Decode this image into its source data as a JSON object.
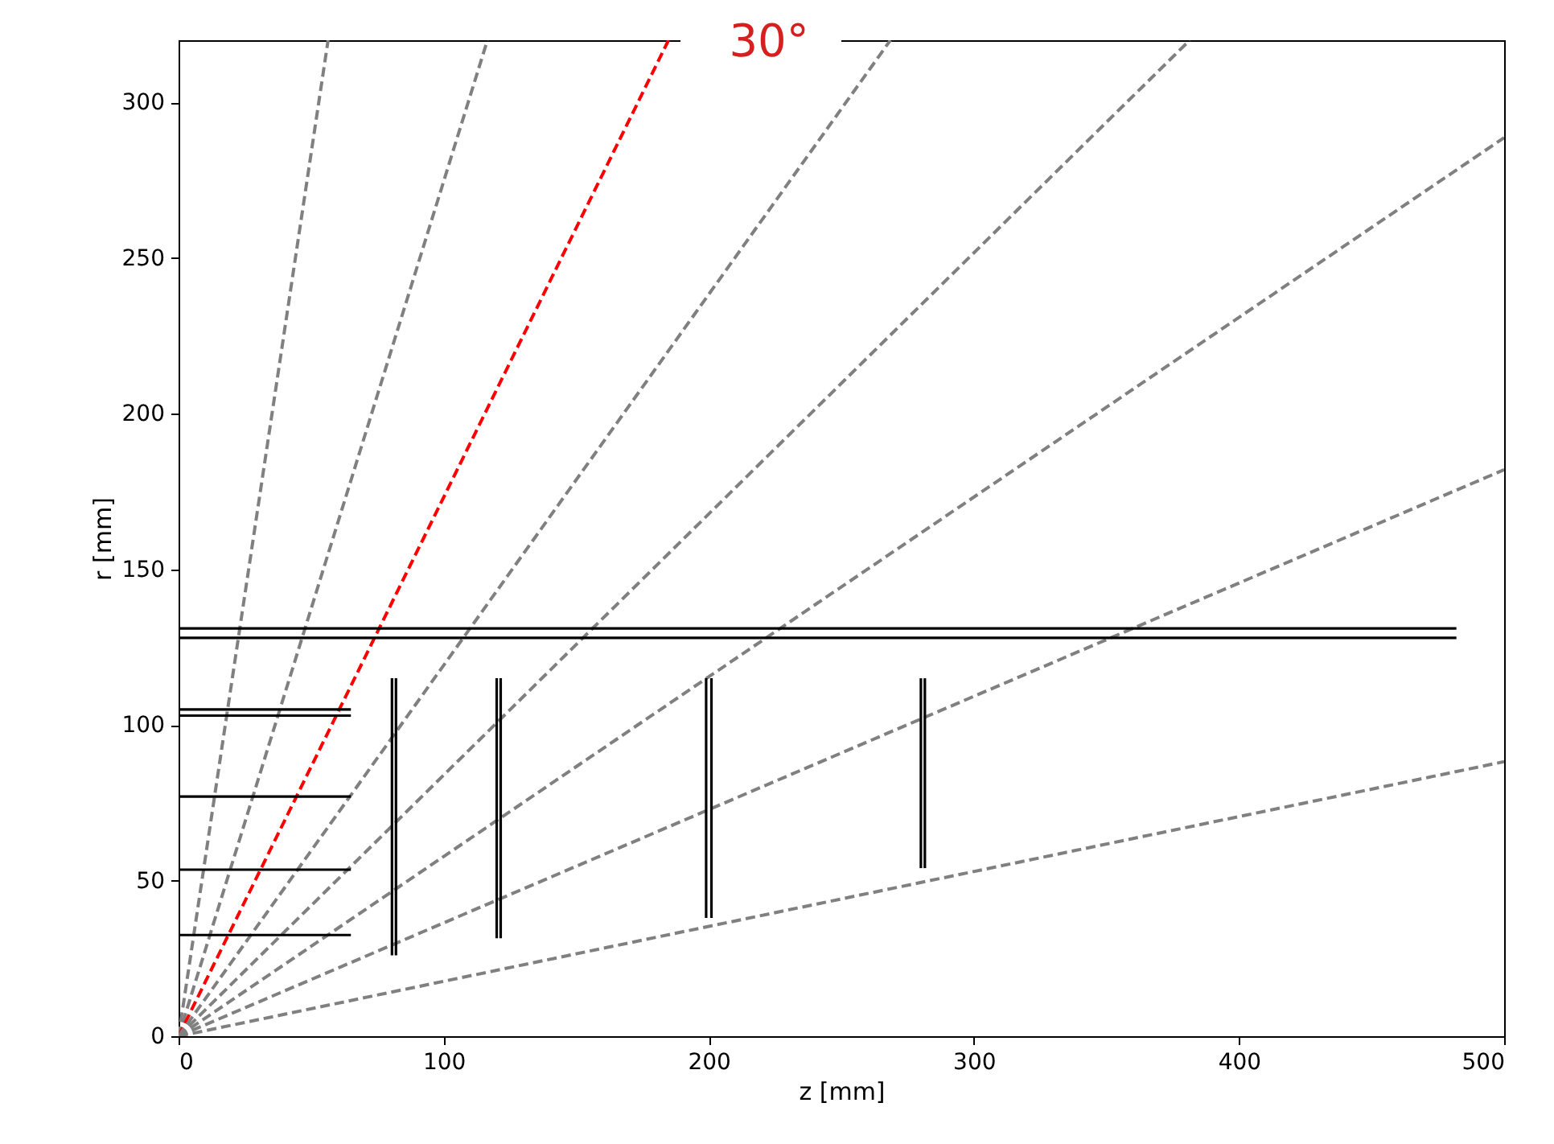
{
  "chart_data": {
    "type": "line",
    "xlabel": "z [mm]",
    "ylabel": "r [mm]",
    "xlim": [
      0,
      500
    ],
    "ylim": [
      0,
      320
    ],
    "xticks": [
      0,
      100,
      200,
      300,
      400,
      500
    ],
    "yticks": [
      0,
      50,
      100,
      150,
      200,
      250,
      300
    ],
    "annotations": [
      "30°"
    ],
    "series": [
      {
        "color": "#808080",
        "line_style": "dashed",
        "x": [
          0,
          56.4
        ],
        "values": [
          0,
          320
        ]
      },
      {
        "color": "#808080",
        "line_style": "dashed",
        "x": [
          0,
          116.5
        ],
        "values": [
          0,
          320
        ]
      },
      {
        "color": "#ff0000",
        "line_style": "dashed",
        "x": [
          0,
          184.8
        ],
        "values": [
          0,
          320
        ]
      },
      {
        "color": "#808080",
        "line_style": "dashed",
        "x": [
          0,
          268.5
        ],
        "values": [
          0,
          320
        ]
      },
      {
        "color": "#808080",
        "line_style": "dashed",
        "x": [
          0,
          381.4
        ],
        "values": [
          0,
          320
        ]
      },
      {
        "color": "#808080",
        "line_style": "dashed",
        "x": [
          0,
          500
        ],
        "values": [
          0,
          288.7
        ]
      },
      {
        "color": "#808080",
        "line_style": "dashed",
        "x": [
          0,
          500
        ],
        "values": [
          0,
          182
        ]
      },
      {
        "color": "#808080",
        "line_style": "dashed",
        "x": [
          0,
          500
        ],
        "values": [
          0,
          88.2
        ]
      },
      {
        "color": "#000000",
        "line_style": "solid",
        "x": [
          0,
          65
        ],
        "values": [
          32.5,
          32.5
        ]
      },
      {
        "color": "#000000",
        "line_style": "solid",
        "x": [
          0,
          65
        ],
        "values": [
          53.5,
          53.5
        ]
      },
      {
        "color": "#000000",
        "line_style": "solid",
        "x": [
          0,
          65
        ],
        "values": [
          77,
          77
        ]
      },
      {
        "color": "#000000",
        "line_style": "solid",
        "x": [
          0,
          65
        ],
        "values": [
          103,
          103
        ]
      },
      {
        "color": "#000000",
        "line_style": "solid",
        "x": [
          0,
          65
        ],
        "values": [
          105,
          105
        ]
      },
      {
        "color": "#000000",
        "line_style": "solid",
        "x": [
          0,
          482
        ],
        "values": [
          128,
          128
        ]
      },
      {
        "color": "#000000",
        "line_style": "solid",
        "x": [
          0,
          482
        ],
        "values": [
          131,
          131
        ]
      },
      {
        "color": "#000000",
        "line_style": "solid",
        "x": [
          80.5,
          80.5
        ],
        "values": [
          26,
          115
        ]
      },
      {
        "color": "#000000",
        "line_style": "solid",
        "x": [
          82,
          82
        ],
        "values": [
          26,
          115
        ]
      },
      {
        "color": "#000000",
        "line_style": "solid",
        "x": [
          120,
          120
        ],
        "values": [
          31.5,
          115
        ]
      },
      {
        "color": "#000000",
        "line_style": "solid",
        "x": [
          121.5,
          121.5
        ],
        "values": [
          31.5,
          115
        ]
      },
      {
        "color": "#000000",
        "line_style": "solid",
        "x": [
          199,
          199
        ],
        "values": [
          38,
          115
        ]
      },
      {
        "color": "#000000",
        "line_style": "solid",
        "x": [
          201,
          201
        ],
        "values": [
          38,
          115
        ]
      },
      {
        "color": "#000000",
        "line_style": "solid",
        "x": [
          280,
          280
        ],
        "values": [
          54,
          115
        ]
      },
      {
        "color": "#000000",
        "line_style": "solid",
        "x": [
          281.5,
          281.5
        ],
        "values": [
          54,
          115
        ]
      }
    ]
  }
}
